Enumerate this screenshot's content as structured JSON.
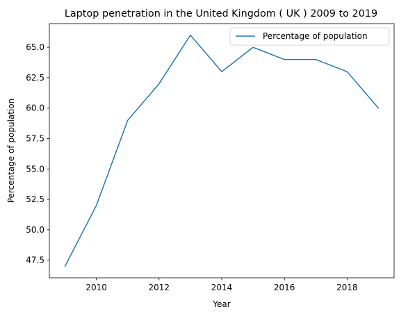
{
  "chart_data": {
    "type": "line",
    "title": "Laptop penetration in the United Kingdom ( UK ) 2009 to 2019",
    "xlabel": "Year",
    "ylabel": "Percentage of population",
    "x": [
      2009,
      2010,
      2011,
      2012,
      2013,
      2014,
      2015,
      2016,
      2017,
      2018,
      2019
    ],
    "series": [
      {
        "name": "Percentage of population",
        "values": [
          47,
          52,
          59,
          62,
          66,
          63,
          65,
          64,
          64,
          63,
          60
        ],
        "color": "#1f77b4"
      }
    ],
    "xlim": [
      2008.5,
      2019.5
    ],
    "ylim": [
      46.05,
      66.95
    ],
    "xticks": [
      2010,
      2012,
      2014,
      2016,
      2018
    ],
    "xtick_labels": [
      "2010",
      "2012",
      "2014",
      "2016",
      "2018"
    ],
    "yticks": [
      47.5,
      50.0,
      52.5,
      55.0,
      57.5,
      60.0,
      62.5,
      65.0
    ],
    "ytick_labels": [
      "47.5",
      "50.0",
      "52.5",
      "55.0",
      "57.5",
      "60.0",
      "62.5",
      "65.0"
    ],
    "grid": false,
    "legend": "top-right"
  }
}
